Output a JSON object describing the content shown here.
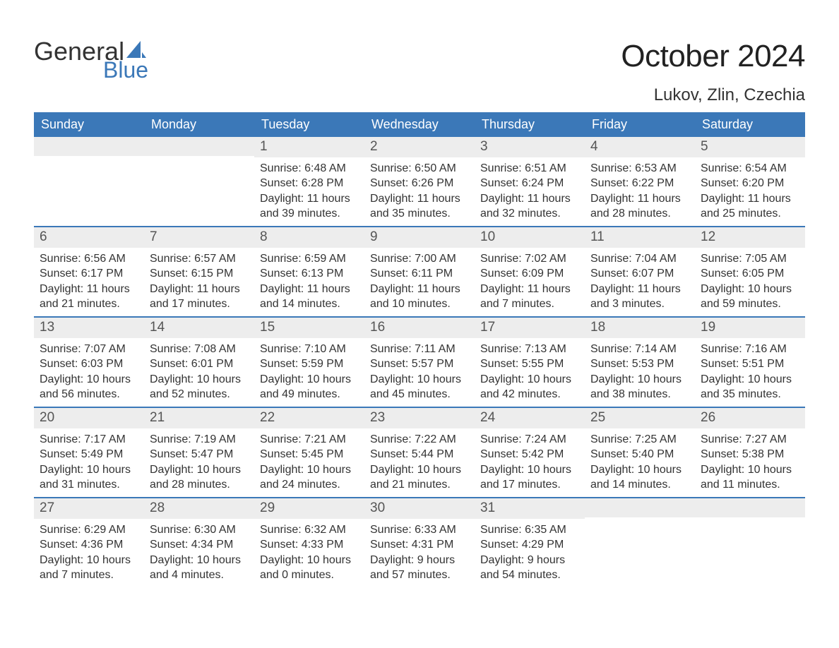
{
  "brand": {
    "text1": "General",
    "text2": "Blue",
    "sail_color": "#3b78b8"
  },
  "title": "October 2024",
  "location": "Lukov, Zlin, Czechia",
  "colors": {
    "header_bg": "#3b78b8",
    "header_text": "#ffffff",
    "daynum_bg": "#ededed",
    "row_border": "#3b78b8",
    "body_text": "#333333"
  },
  "weekdays": [
    "Sunday",
    "Monday",
    "Tuesday",
    "Wednesday",
    "Thursday",
    "Friday",
    "Saturday"
  ],
  "layout": {
    "columns": 7,
    "rows": 5,
    "first_weekday_index": 2
  },
  "days": [
    {
      "n": 1,
      "sunrise": "6:48 AM",
      "sunset": "6:28 PM",
      "daylight": "11 hours and 39 minutes."
    },
    {
      "n": 2,
      "sunrise": "6:50 AM",
      "sunset": "6:26 PM",
      "daylight": "11 hours and 35 minutes."
    },
    {
      "n": 3,
      "sunrise": "6:51 AM",
      "sunset": "6:24 PM",
      "daylight": "11 hours and 32 minutes."
    },
    {
      "n": 4,
      "sunrise": "6:53 AM",
      "sunset": "6:22 PM",
      "daylight": "11 hours and 28 minutes."
    },
    {
      "n": 5,
      "sunrise": "6:54 AM",
      "sunset": "6:20 PM",
      "daylight": "11 hours and 25 minutes."
    },
    {
      "n": 6,
      "sunrise": "6:56 AM",
      "sunset": "6:17 PM",
      "daylight": "11 hours and 21 minutes."
    },
    {
      "n": 7,
      "sunrise": "6:57 AM",
      "sunset": "6:15 PM",
      "daylight": "11 hours and 17 minutes."
    },
    {
      "n": 8,
      "sunrise": "6:59 AM",
      "sunset": "6:13 PM",
      "daylight": "11 hours and 14 minutes."
    },
    {
      "n": 9,
      "sunrise": "7:00 AM",
      "sunset": "6:11 PM",
      "daylight": "11 hours and 10 minutes."
    },
    {
      "n": 10,
      "sunrise": "7:02 AM",
      "sunset": "6:09 PM",
      "daylight": "11 hours and 7 minutes."
    },
    {
      "n": 11,
      "sunrise": "7:04 AM",
      "sunset": "6:07 PM",
      "daylight": "11 hours and 3 minutes."
    },
    {
      "n": 12,
      "sunrise": "7:05 AM",
      "sunset": "6:05 PM",
      "daylight": "10 hours and 59 minutes."
    },
    {
      "n": 13,
      "sunrise": "7:07 AM",
      "sunset": "6:03 PM",
      "daylight": "10 hours and 56 minutes."
    },
    {
      "n": 14,
      "sunrise": "7:08 AM",
      "sunset": "6:01 PM",
      "daylight": "10 hours and 52 minutes."
    },
    {
      "n": 15,
      "sunrise": "7:10 AM",
      "sunset": "5:59 PM",
      "daylight": "10 hours and 49 minutes."
    },
    {
      "n": 16,
      "sunrise": "7:11 AM",
      "sunset": "5:57 PM",
      "daylight": "10 hours and 45 minutes."
    },
    {
      "n": 17,
      "sunrise": "7:13 AM",
      "sunset": "5:55 PM",
      "daylight": "10 hours and 42 minutes."
    },
    {
      "n": 18,
      "sunrise": "7:14 AM",
      "sunset": "5:53 PM",
      "daylight": "10 hours and 38 minutes."
    },
    {
      "n": 19,
      "sunrise": "7:16 AM",
      "sunset": "5:51 PM",
      "daylight": "10 hours and 35 minutes."
    },
    {
      "n": 20,
      "sunrise": "7:17 AM",
      "sunset": "5:49 PM",
      "daylight": "10 hours and 31 minutes."
    },
    {
      "n": 21,
      "sunrise": "7:19 AM",
      "sunset": "5:47 PM",
      "daylight": "10 hours and 28 minutes."
    },
    {
      "n": 22,
      "sunrise": "7:21 AM",
      "sunset": "5:45 PM",
      "daylight": "10 hours and 24 minutes."
    },
    {
      "n": 23,
      "sunrise": "7:22 AM",
      "sunset": "5:44 PM",
      "daylight": "10 hours and 21 minutes."
    },
    {
      "n": 24,
      "sunrise": "7:24 AM",
      "sunset": "5:42 PM",
      "daylight": "10 hours and 17 minutes."
    },
    {
      "n": 25,
      "sunrise": "7:25 AM",
      "sunset": "5:40 PM",
      "daylight": "10 hours and 14 minutes."
    },
    {
      "n": 26,
      "sunrise": "7:27 AM",
      "sunset": "5:38 PM",
      "daylight": "10 hours and 11 minutes."
    },
    {
      "n": 27,
      "sunrise": "6:29 AM",
      "sunset": "4:36 PM",
      "daylight": "10 hours and 7 minutes."
    },
    {
      "n": 28,
      "sunrise": "6:30 AM",
      "sunset": "4:34 PM",
      "daylight": "10 hours and 4 minutes."
    },
    {
      "n": 29,
      "sunrise": "6:32 AM",
      "sunset": "4:33 PM",
      "daylight": "10 hours and 0 minutes."
    },
    {
      "n": 30,
      "sunrise": "6:33 AM",
      "sunset": "4:31 PM",
      "daylight": "9 hours and 57 minutes."
    },
    {
      "n": 31,
      "sunrise": "6:35 AM",
      "sunset": "4:29 PM",
      "daylight": "9 hours and 54 minutes."
    }
  ],
  "labels": {
    "sunrise": "Sunrise:",
    "sunset": "Sunset:",
    "daylight": "Daylight:"
  }
}
